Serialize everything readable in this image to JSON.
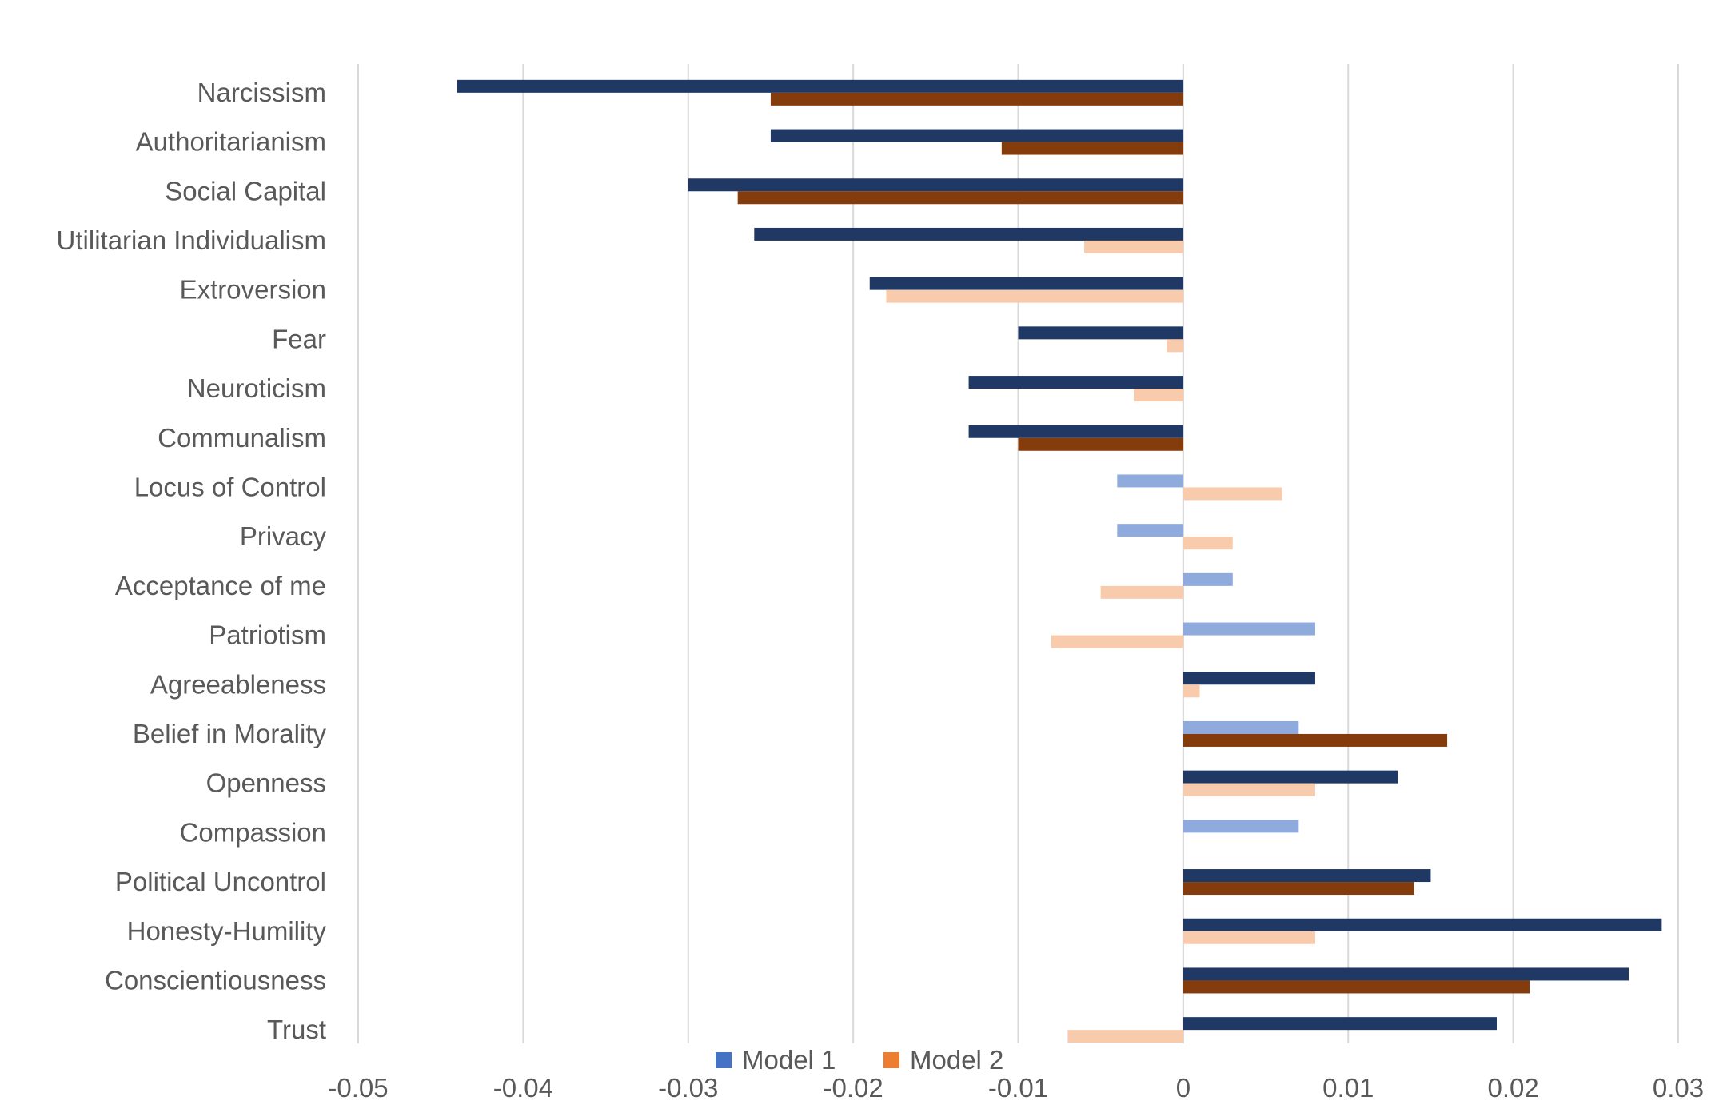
{
  "chart_data": {
    "type": "bar",
    "orientation": "horizontal",
    "title": "",
    "xlabel": "",
    "ylabel": "",
    "xlim": [
      -0.05,
      0.03
    ],
    "x_ticks": [
      "-0.05",
      "-0.04",
      "-0.03",
      "-0.02",
      "-0.01",
      "0",
      "0.01",
      "0.02",
      "0.03"
    ],
    "grid": "vertical",
    "legend_position": "bottom",
    "categories": [
      "Narcissism",
      "Authoritarianism",
      "Social Capital",
      "Utilitarian Individualism",
      "Extroversion",
      "Fear",
      "Neuroticism",
      "Communalism",
      "Locus of Control",
      "Privacy",
      "Acceptance of me",
      "Patriotism",
      "Agreeableness",
      "Belief in Morality",
      "Openness",
      "Compassion",
      "Political Uncontrol",
      "Honesty-Humility",
      "Conscientiousness",
      "Trust"
    ],
    "series": [
      {
        "name": "Model 1",
        "legend_color": "#4472C4",
        "color_significant": "#203864",
        "color_nonsignificant": "#8FAADC",
        "values": [
          -0.044,
          -0.025,
          -0.03,
          -0.026,
          -0.019,
          -0.01,
          -0.013,
          -0.013,
          -0.004,
          -0.004,
          0.003,
          0.008,
          0.008,
          0.007,
          0.013,
          0.007,
          0.015,
          0.029,
          0.027,
          0.019
        ],
        "significant": [
          true,
          true,
          true,
          true,
          true,
          true,
          true,
          true,
          false,
          false,
          false,
          false,
          true,
          false,
          true,
          false,
          true,
          true,
          true,
          true
        ]
      },
      {
        "name": "Model 2",
        "legend_color": "#ED7D31",
        "color_significant": "#843C0C",
        "color_nonsignificant": "#F8CBAD",
        "values": [
          -0.025,
          -0.011,
          -0.027,
          -0.006,
          -0.018,
          -0.001,
          -0.003,
          -0.01,
          0.006,
          0.003,
          -0.005,
          -0.008,
          0.001,
          0.016,
          0.008,
          0.0,
          0.014,
          0.008,
          0.021,
          -0.007
        ],
        "significant": [
          true,
          true,
          true,
          false,
          false,
          false,
          false,
          true,
          false,
          false,
          false,
          false,
          false,
          true,
          false,
          false,
          true,
          false,
          true,
          false
        ]
      }
    ]
  }
}
